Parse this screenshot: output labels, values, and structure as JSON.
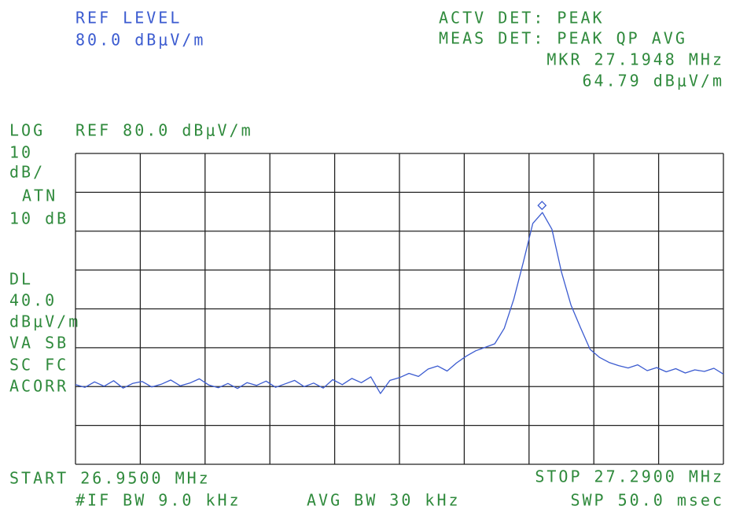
{
  "chart_data": {
    "type": "line",
    "header_left": [
      "REF LEVEL",
      "80.0 dBμV/m"
    ],
    "header_right": [
      "ACTV DET: PEAK",
      "MEAS DET: PEAK QP AVG"
    ],
    "marker_readout": [
      "MKR 27.1948 MHz",
      "64.79 dBμV/m"
    ],
    "ref_label": "LOG",
    "ref_text": "REF 80.0 dBμV/m",
    "side_labels": [
      "10",
      "dB/",
      "ATN",
      "10 dB",
      "DL",
      "40.0",
      "dBμV/m",
      "VA SB",
      "SC FC",
      "ACORR"
    ],
    "footer": [
      "START 26.9500 MHz",
      "STOP 27.2900 MHz",
      "#IF BW 9.0 kHz",
      "AVG BW 30 kHz",
      "SWP 50.0 msec"
    ],
    "xlim": [
      26.95,
      27.29
    ],
    "ylim": [
      0,
      80
    ],
    "grid_divisions": [
      10,
      8
    ],
    "color": "#3b5bd0",
    "marker": {
      "x": 27.1948,
      "y": 64.79
    },
    "x": [
      26.95,
      26.955,
      26.96,
      26.965,
      26.97,
      26.975,
      26.98,
      26.985,
      26.99,
      26.995,
      27.0,
      27.005,
      27.01,
      27.015,
      27.02,
      27.025,
      27.03,
      27.035,
      27.04,
      27.045,
      27.05,
      27.055,
      27.06,
      27.065,
      27.07,
      27.075,
      27.08,
      27.085,
      27.09,
      27.095,
      27.1,
      27.105,
      27.11,
      27.115,
      27.12,
      27.125,
      27.13,
      27.135,
      27.14,
      27.145,
      27.15,
      27.155,
      27.16,
      27.165,
      27.17,
      27.175,
      27.18,
      27.185,
      27.19,
      27.195,
      27.2,
      27.205,
      27.21,
      27.215,
      27.22,
      27.225,
      27.23,
      27.235,
      27.24,
      27.245,
      27.25,
      27.255,
      27.26,
      27.265,
      27.27,
      27.275,
      27.28,
      27.285,
      27.29
    ],
    "values": [
      20.5,
      19.8,
      21.2,
      20.1,
      21.5,
      19.6,
      20.8,
      21.3,
      19.9,
      20.6,
      21.7,
      20.2,
      20.9,
      22.0,
      20.4,
      19.7,
      20.8,
      19.5,
      21.0,
      20.3,
      21.4,
      19.8,
      20.7,
      21.6,
      20.0,
      20.9,
      19.6,
      21.8,
      20.5,
      22.1,
      21.0,
      22.5,
      18.2,
      21.6,
      22.3,
      23.4,
      22.6,
      24.5,
      25.3,
      24.0,
      26.1,
      27.8,
      29.2,
      30.1,
      31.0,
      35.0,
      42.5,
      52.0,
      62.0,
      64.8,
      60.5,
      49.5,
      41.0,
      35.2,
      29.6,
      27.5,
      26.2,
      25.4,
      24.8,
      25.6,
      24.1,
      24.9,
      23.8,
      24.6,
      23.5,
      24.3,
      23.9,
      24.7,
      23.2
    ]
  }
}
